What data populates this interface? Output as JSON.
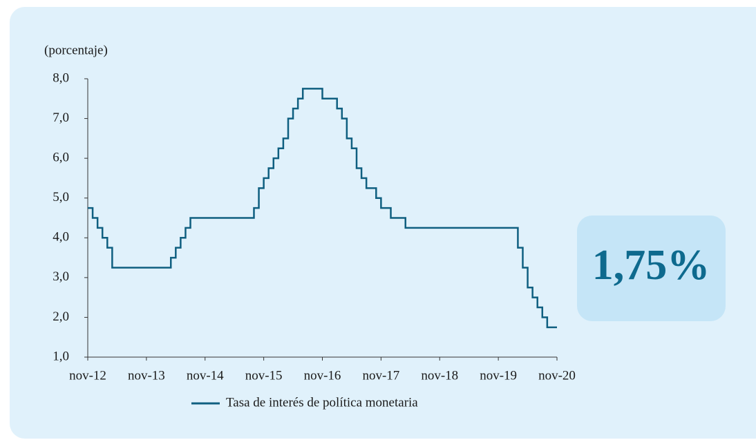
{
  "chart_data": {
    "type": "line",
    "step": true,
    "y_label": "(porcentaje)",
    "annotation": "1,75%",
    "x": [
      "2012-11",
      "2012-12",
      "2013-01",
      "2013-02",
      "2013-03",
      "2013-04",
      "2014-04",
      "2014-05",
      "2014-06",
      "2014-07",
      "2014-08",
      "2015-09",
      "2015-10",
      "2015-11",
      "2015-12",
      "2016-01",
      "2016-02",
      "2016-03",
      "2016-04",
      "2016-05",
      "2016-06",
      "2016-07",
      "2016-11",
      "2017-02",
      "2017-03",
      "2017-04",
      "2017-05",
      "2017-06",
      "2017-07",
      "2017-08",
      "2017-10",
      "2017-11",
      "2018-01",
      "2018-04",
      "2020-03",
      "2020-04",
      "2020-05",
      "2020-06",
      "2020-07",
      "2020-08",
      "2020-09",
      "2020-11"
    ],
    "series": [
      {
        "name": "Tasa de interés de política monetaria",
        "color": "#0f5f80",
        "values": [
          4.75,
          4.5,
          4.25,
          4.0,
          3.75,
          3.25,
          3.5,
          3.75,
          4.0,
          4.25,
          4.5,
          4.75,
          5.25,
          5.5,
          5.75,
          6.0,
          6.25,
          6.5,
          7.0,
          7.25,
          7.5,
          7.75,
          7.5,
          7.25,
          7.0,
          6.5,
          6.25,
          5.75,
          5.5,
          5.25,
          5.0,
          4.75,
          4.5,
          4.25,
          3.75,
          3.25,
          2.75,
          2.5,
          2.25,
          2.0,
          1.75,
          1.75
        ]
      }
    ],
    "xlim": [
      "2012-11",
      "2020-11"
    ],
    "xticks": [
      {
        "value": "2012-11",
        "label": "nov-12"
      },
      {
        "value": "2013-11",
        "label": "nov-13"
      },
      {
        "value": "2014-11",
        "label": "nov-14"
      },
      {
        "value": "2015-11",
        "label": "nov-15"
      },
      {
        "value": "2016-11",
        "label": "nov-16"
      },
      {
        "value": "2017-11",
        "label": "nov-17"
      },
      {
        "value": "2018-11",
        "label": "nov-18"
      },
      {
        "value": "2019-11",
        "label": "nov-19"
      },
      {
        "value": "2020-11",
        "label": "nov-20"
      }
    ],
    "ylim": [
      1,
      8
    ],
    "yticks": [
      {
        "value": 1,
        "label": "1,0"
      },
      {
        "value": 2,
        "label": "2,0"
      },
      {
        "value": 3,
        "label": "3,0"
      },
      {
        "value": 4,
        "label": "4,0"
      },
      {
        "value": 5,
        "label": "5,0"
      },
      {
        "value": 6,
        "label": "6,0"
      },
      {
        "value": 7,
        "label": "7,0"
      },
      {
        "value": 8,
        "label": "8,0"
      }
    ],
    "grid": false,
    "legend": "bottom"
  }
}
